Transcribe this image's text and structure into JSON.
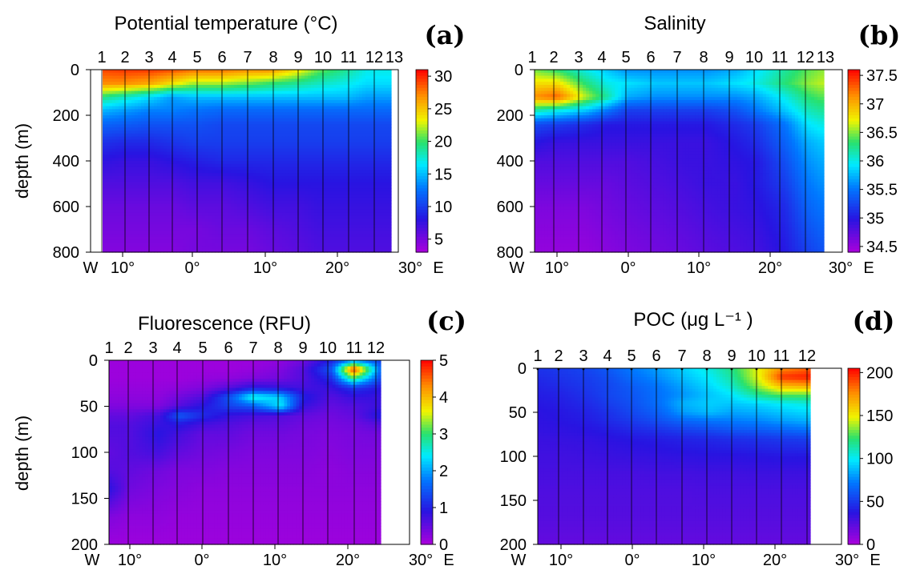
{
  "chart_data": [
    {
      "id": "a",
      "type": "heatmap",
      "panel_label": "(a)",
      "title": "Potential temperature (°C)",
      "ylabel": "depth (m)",
      "ylim": [
        0,
        800
      ],
      "yticks": [
        "0",
        "200",
        "400",
        "600",
        "800"
      ],
      "station_labels": [
        "1",
        "2",
        "3",
        "4",
        "5",
        "6",
        "7",
        "8",
        "9",
        "10",
        "11",
        "12",
        "13"
      ],
      "x_tick_labels": [
        "W",
        "10°",
        "0°",
        "10°",
        "20°",
        "30°",
        "E"
      ],
      "colorbar": {
        "min": 3,
        "max": 31,
        "ticks": [
          "5",
          "10",
          "15",
          "20",
          "25",
          "30"
        ]
      },
      "field": {
        "x_deg": [
          -14,
          -10,
          -6,
          -3,
          0,
          4,
          8,
          11,
          15,
          18,
          22,
          25,
          27
        ],
        "depth_m": [
          0,
          60,
          120,
          180,
          240,
          320,
          400,
          500,
          600,
          700,
          800
        ],
        "values": [
          [
            29,
            29.5,
            29.5,
            29,
            28,
            28,
            27,
            27,
            24,
            21,
            19,
            17,
            17
          ],
          [
            27,
            27,
            26,
            24,
            22,
            22,
            21,
            20,
            19,
            18,
            17,
            16,
            16
          ],
          [
            20,
            18,
            16,
            14,
            15,
            15,
            15,
            15,
            15,
            15,
            15,
            14,
            14
          ],
          [
            15,
            14,
            13,
            13,
            12.5,
            12,
            12,
            12,
            12,
            12,
            12,
            12,
            12
          ],
          [
            12,
            11.5,
            11,
            11,
            11,
            10.5,
            10.5,
            10.5,
            10.5,
            10.5,
            10.5,
            10.5,
            10.5
          ],
          [
            9.5,
            9,
            9,
            9.5,
            10,
            10,
            10,
            10,
            10,
            10,
            10,
            10,
            10
          ],
          [
            8,
            7.5,
            7.5,
            8,
            8.5,
            9,
            9,
            9,
            9,
            9,
            9,
            9,
            9
          ],
          [
            6.5,
            6.5,
            6.5,
            6.5,
            7,
            7,
            7.5,
            8,
            8,
            8,
            8,
            8,
            8
          ],
          [
            5.5,
            5.5,
            5.5,
            5.5,
            6,
            6,
            6.5,
            7,
            7,
            7.5,
            7.5,
            7.5,
            7.5
          ],
          [
            5,
            5,
            5,
            5,
            5,
            5.5,
            5.5,
            6,
            6.5,
            7,
            7,
            7,
            7
          ],
          [
            4.5,
            4.5,
            4.5,
            4.5,
            5,
            5,
            5,
            5.5,
            6,
            6.5,
            6.5,
            6.5,
            6.5
          ]
        ]
      }
    },
    {
      "id": "b",
      "type": "heatmap",
      "panel_label": "(b)",
      "title": "Salinity",
      "ylabel": "",
      "ylim": [
        0,
        800
      ],
      "yticks": [
        "0",
        "200",
        "400",
        "600",
        "800"
      ],
      "station_labels": [
        "1",
        "2",
        "3",
        "4",
        "5",
        "6",
        "7",
        "8",
        "9",
        "10",
        "11",
        "12",
        "13"
      ],
      "x_tick_labels": [
        "W",
        "10°",
        "0°",
        "10°",
        "20°",
        "30°",
        "E"
      ],
      "colorbar": {
        "min": 34.4,
        "max": 37.6,
        "ticks": [
          "34.5",
          "35",
          "35.5",
          "36",
          "36.5",
          "37",
          "37.5"
        ]
      },
      "field": {
        "x_deg": [
          -14,
          -10,
          -6,
          -3,
          0,
          4,
          8,
          11,
          15,
          18,
          22,
          25,
          27
        ],
        "depth_m": [
          0,
          60,
          120,
          180,
          240,
          320,
          400,
          500,
          600,
          700,
          800
        ],
        "values": [
          [
            36.5,
            36.3,
            36,
            35.8,
            35.6,
            35.6,
            35.6,
            35.6,
            35.7,
            35.9,
            36.2,
            36.4,
            36.5
          ],
          [
            36.8,
            36.8,
            36.3,
            36,
            35.9,
            35.8,
            35.8,
            35.8,
            35.9,
            36,
            36.3,
            36.5,
            36.6
          ],
          [
            37.1,
            37.3,
            36.6,
            36.2,
            35.7,
            35.6,
            35.6,
            35.6,
            35.6,
            35.7,
            36,
            36.3,
            36.4
          ],
          [
            36.2,
            36,
            35.8,
            35.5,
            35.2,
            35.2,
            35.2,
            35.2,
            35.3,
            35.5,
            35.8,
            36.1,
            36.2
          ],
          [
            35.3,
            35.2,
            35.1,
            35,
            35,
            35,
            35,
            35,
            35.1,
            35.2,
            35.5,
            35.9,
            36
          ],
          [
            35,
            34.9,
            34.9,
            34.9,
            34.9,
            34.9,
            34.9,
            34.9,
            35,
            35.1,
            35.4,
            35.7,
            35.8
          ],
          [
            34.8,
            34.8,
            34.8,
            34.8,
            34.8,
            34.85,
            34.9,
            34.9,
            34.95,
            35,
            35.3,
            35.6,
            35.7
          ],
          [
            34.7,
            34.7,
            34.7,
            34.7,
            34.75,
            34.8,
            34.85,
            34.9,
            34.9,
            35,
            35.2,
            35.5,
            35.6
          ],
          [
            34.6,
            34.6,
            34.6,
            34.65,
            34.7,
            34.75,
            34.8,
            34.85,
            34.9,
            34.95,
            35.1,
            35.4,
            35.5
          ],
          [
            34.55,
            34.55,
            34.55,
            34.6,
            34.65,
            34.7,
            34.75,
            34.8,
            34.85,
            34.9,
            35.05,
            35.3,
            35.4
          ],
          [
            34.5,
            34.5,
            34.5,
            34.55,
            34.6,
            34.65,
            34.7,
            34.75,
            34.8,
            34.85,
            35,
            35.2,
            35.3
          ]
        ]
      }
    },
    {
      "id": "c",
      "type": "heatmap",
      "panel_label": "(c)",
      "title": "Fluorescence (RFU)",
      "ylabel": "depth (m)",
      "ylim": [
        0,
        200
      ],
      "yticks": [
        "0",
        "50",
        "100",
        "150",
        "200"
      ],
      "station_labels": [
        "1",
        "2",
        "3",
        "4",
        "5",
        "6",
        "7",
        "8",
        "9",
        "10",
        "11",
        "12"
      ],
      "x_tick_labels": [
        "W",
        "10°",
        "0°",
        "10°",
        "20°",
        "30°",
        "E"
      ],
      "colorbar": {
        "min": 0,
        "max": 5,
        "ticks": [
          "0",
          "1",
          "2",
          "3",
          "4",
          "5"
        ]
      },
      "field": {
        "x_deg": [
          -13,
          -10,
          -6,
          -3,
          0,
          4,
          7,
          11,
          14,
          18,
          21,
          25
        ],
        "depth_m": [
          0,
          10,
          20,
          30,
          40,
          50,
          60,
          70,
          80,
          100,
          120,
          140,
          170,
          200
        ],
        "values": [
          [
            0.1,
            0.1,
            0.1,
            0.1,
            0.1,
            0.1,
            0.1,
            0.2,
            0.4,
            1,
            1.8,
            1.2
          ],
          [
            0.1,
            0.1,
            0.1,
            0.1,
            0.1,
            0.1,
            0.15,
            0.3,
            0.6,
            1.5,
            4.8,
            1.4
          ],
          [
            0.1,
            0.1,
            0.1,
            0.1,
            0.15,
            0.2,
            0.3,
            0.4,
            0.6,
            1.1,
            3,
            1.2
          ],
          [
            0.15,
            0.15,
            0.15,
            0.2,
            0.3,
            0.6,
            0.9,
            0.8,
            0.7,
            0.8,
            1.2,
            0.9
          ],
          [
            0.2,
            0.2,
            0.2,
            0.4,
            0.6,
            1.5,
            2.6,
            2.2,
            1,
            0.6,
            0.8,
            0.8
          ],
          [
            0.3,
            0.3,
            0.3,
            0.6,
            0.9,
            1.3,
            1.5,
            2.4,
            0.8,
            0.5,
            0.6,
            0.8
          ],
          [
            0.5,
            0.5,
            0.7,
            1.5,
            1.1,
            0.8,
            0.7,
            0.6,
            0.5,
            0.4,
            0.5,
            1
          ],
          [
            0.6,
            0.6,
            0.8,
            0.9,
            0.7,
            0.6,
            0.5,
            0.5,
            0.4,
            0.35,
            0.4,
            0.6
          ],
          [
            0.6,
            0.6,
            0.9,
            0.7,
            0.5,
            0.5,
            0.4,
            0.4,
            0.35,
            0.3,
            0.35,
            0.4
          ],
          [
            0.5,
            0.6,
            0.7,
            0.5,
            0.4,
            0.35,
            0.3,
            0.3,
            0.3,
            0.25,
            0.3,
            0.3
          ],
          [
            0.6,
            0.5,
            0.4,
            0.3,
            0.3,
            0.25,
            0.25,
            0.25,
            0.25,
            0.2,
            0.25,
            0.25
          ],
          [
            0.9,
            0.4,
            0.3,
            0.25,
            0.2,
            0.2,
            0.2,
            0.2,
            0.2,
            0.2,
            0.2,
            0.2
          ],
          [
            0.3,
            0.2,
            0.2,
            0.15,
            0.15,
            0.15,
            0.15,
            0.15,
            0.15,
            0.15,
            0.15,
            0.15
          ],
          [
            0.1,
            0.1,
            0.1,
            0.1,
            0.1,
            0.1,
            0.1,
            0.1,
            0.1,
            0.1,
            0.1,
            0.1
          ]
        ]
      }
    },
    {
      "id": "d",
      "type": "heatmap",
      "panel_label": "(d)",
      "title": "POC (μg L⁻¹ )",
      "ylabel": "",
      "ylim": [
        0,
        200
      ],
      "yticks": [
        "0",
        "50",
        "100",
        "150",
        "200"
      ],
      "station_labels": [
        "1",
        "2",
        "3",
        "4",
        "5",
        "6",
        "7",
        "8",
        "9",
        "10",
        "11",
        "12"
      ],
      "x_tick_labels": [
        "W",
        "10°",
        "0°",
        "10°",
        "20°",
        "30°",
        "E"
      ],
      "colorbar": {
        "min": 0,
        "max": 205,
        "ticks": [
          "0",
          "50",
          "100",
          "150",
          "200"
        ]
      },
      "field": {
        "x_deg": [
          -13,
          -10,
          -6,
          -3,
          0,
          4,
          7,
          11,
          14,
          18,
          21,
          25
        ],
        "depth_m": [
          0,
          10,
          20,
          30,
          40,
          50,
          60,
          70,
          80,
          100,
          120,
          140,
          170,
          200
        ],
        "values": [
          [
            48,
            50,
            55,
            62,
            72,
            82,
            92,
            105,
            120,
            150,
            175,
            185
          ],
          [
            45,
            48,
            52,
            58,
            68,
            78,
            88,
            100,
            115,
            150,
            195,
            200
          ],
          [
            42,
            45,
            50,
            55,
            62,
            72,
            82,
            95,
            108,
            140,
            165,
            170
          ],
          [
            40,
            42,
            48,
            55,
            60,
            70,
            78,
            90,
            98,
            120,
            130,
            130
          ],
          [
            38,
            40,
            45,
            52,
            58,
            70,
            85,
            92,
            90,
            95,
            100,
            105
          ],
          [
            36,
            38,
            42,
            48,
            55,
            65,
            80,
            88,
            82,
            85,
            90,
            95
          ],
          [
            35,
            37,
            40,
            45,
            50,
            58,
            65,
            70,
            72,
            75,
            80,
            85
          ],
          [
            34,
            35,
            37,
            40,
            44,
            48,
            52,
            56,
            60,
            62,
            65,
            70
          ],
          [
            32,
            33,
            34,
            36,
            38,
            40,
            42,
            44,
            46,
            48,
            50,
            52
          ],
          [
            30,
            30,
            31,
            32,
            33,
            34,
            35,
            36,
            36,
            37,
            38,
            38
          ],
          [
            28,
            28,
            28,
            28,
            28,
            29,
            29,
            30,
            30,
            31,
            31,
            31
          ],
          [
            26,
            26,
            26,
            26,
            26,
            26,
            26,
            27,
            27,
            27,
            27,
            27
          ],
          [
            24,
            24,
            24,
            24,
            24,
            24,
            24,
            24,
            24,
            24,
            24,
            24
          ],
          [
            20,
            20,
            20,
            20,
            20,
            20,
            20,
            20,
            20,
            20,
            20,
            20
          ]
        ]
      }
    }
  ]
}
